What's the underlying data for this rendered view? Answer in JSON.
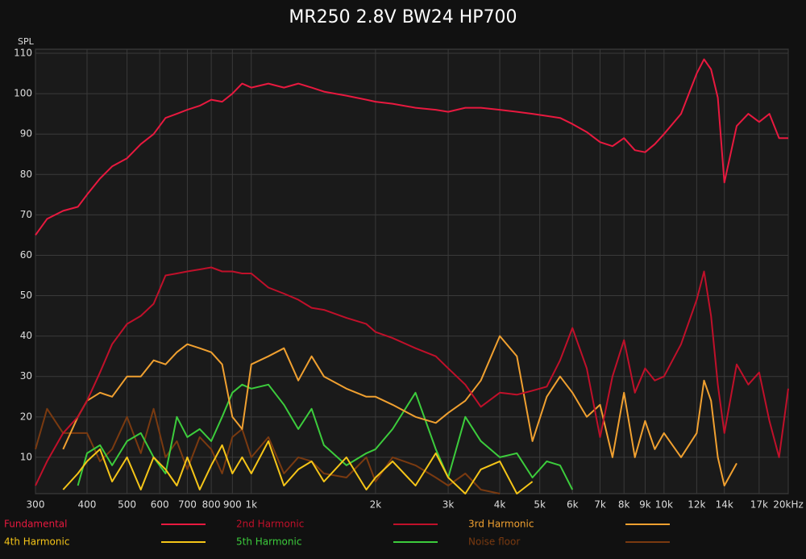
{
  "chart_data": {
    "type": "line",
    "title": "MR250 2.8V BW24 HP700",
    "y_label": "SPL",
    "log_x": true,
    "grid": true,
    "x": [
      300,
      320,
      350,
      380,
      400,
      430,
      460,
      500,
      540,
      580,
      620,
      660,
      700,
      750,
      800,
      850,
      900,
      950,
      1000,
      1100,
      1200,
      1300,
      1400,
      1500,
      1700,
      1900,
      2000,
      2200,
      2500,
      2800,
      3000,
      3300,
      3600,
      4000,
      4400,
      4800,
      5200,
      5600,
      6000,
      6500,
      7000,
      7500,
      8000,
      8500,
      9000,
      9500,
      10000,
      11000,
      12000,
      12500,
      13000,
      13500,
      14000,
      15000,
      16000,
      17000,
      18000,
      19000,
      20000
    ],
    "xlim": [
      300,
      20000
    ],
    "ylim": [
      1,
      111
    ],
    "xticks": [
      300,
      400,
      500,
      600,
      700,
      800,
      900,
      {
        "value": 1000,
        "label": "1k"
      },
      {
        "value": 2000,
        "label": "2k"
      },
      {
        "value": 3000,
        "label": "3k"
      },
      {
        "value": 4000,
        "label": "4k"
      },
      {
        "value": 5000,
        "label": "5k"
      },
      {
        "value": 6000,
        "label": "6k"
      },
      {
        "value": 7000,
        "label": "7k"
      },
      {
        "value": 8000,
        "label": "8k"
      },
      {
        "value": 9000,
        "label": "9k"
      },
      {
        "value": 10000,
        "label": "10k"
      },
      {
        "value": 12000,
        "label": "12k"
      },
      {
        "value": 14000,
        "label": "14k"
      },
      {
        "value": 17000,
        "label": "17k"
      },
      {
        "value": 20000,
        "label": "20kHz"
      }
    ],
    "yticks": [
      10,
      20,
      30,
      40,
      50,
      60,
      70,
      80,
      90,
      100,
      110
    ],
    "series": [
      {
        "name": "Fundamental",
        "color": "#e8193f",
        "values": [
          65,
          69,
          71,
          72,
          75,
          79,
          82,
          84,
          87.5,
          90,
          94,
          95,
          96,
          97,
          98.5,
          98,
          100,
          102.5,
          101.5,
          102.5,
          101.5,
          102.5,
          101.5,
          100.5,
          99.5,
          98.5,
          98,
          97.5,
          96.5,
          96,
          95.5,
          96.5,
          96.5,
          96,
          95.5,
          95,
          94.5,
          94,
          92.5,
          90.5,
          88,
          87,
          89,
          86,
          85.5,
          87.5,
          90,
          95,
          105,
          108.5,
          106,
          99,
          78,
          92,
          95,
          93,
          95,
          89,
          89
        ]
      },
      {
        "name": "2nd Harmonic",
        "color": "#c0102a",
        "values": [
          3,
          9,
          16,
          20,
          24,
          31,
          38,
          43,
          45,
          48,
          55,
          55.5,
          56,
          56.5,
          57,
          56,
          56,
          55.5,
          55.5,
          52,
          50.5,
          49,
          47,
          46.5,
          44.5,
          43,
          41,
          39.5,
          37,
          35,
          32,
          28,
          22.5,
          26,
          25.5,
          26.5,
          27.5,
          34,
          42,
          32,
          15,
          30,
          39,
          26,
          32,
          29,
          30,
          38,
          49,
          56,
          45,
          28,
          16,
          33,
          28,
          31,
          19,
          10,
          27
        ]
      },
      {
        "name": "3rd Harmonic",
        "color": "#f0a030",
        "values": [
          null,
          null,
          12,
          20,
          24,
          26,
          25,
          30,
          30,
          34,
          33,
          36,
          38,
          37,
          36,
          33,
          20,
          17,
          33,
          35,
          37,
          29,
          35,
          30,
          27,
          25,
          25,
          23,
          20,
          18.5,
          21,
          24,
          29,
          40,
          35,
          14,
          25,
          30,
          26,
          20,
          23,
          10,
          26,
          10,
          19,
          12,
          16,
          10,
          16,
          29,
          24,
          10,
          3,
          8.5,
          null,
          null,
          null,
          null,
          null
        ]
      },
      {
        "name": "4th Harmonic",
        "color": "#f5c518",
        "values": [
          null,
          null,
          2,
          6,
          9,
          12,
          4,
          10,
          2,
          10,
          7,
          3,
          10,
          2,
          8,
          13,
          6,
          10,
          6,
          14,
          3,
          7,
          9,
          4,
          10,
          2,
          5,
          9,
          3,
          11,
          5,
          1,
          7,
          9,
          1,
          4,
          null,
          null,
          null,
          null,
          null,
          null,
          null,
          null,
          null,
          null,
          null,
          null,
          null,
          null,
          null,
          null,
          null,
          null,
          null,
          null,
          null,
          null,
          null
        ]
      },
      {
        "name": "5th Harmonic",
        "color": "#3ccc3c",
        "values": [
          null,
          null,
          null,
          3,
          11,
          13,
          8,
          14,
          16,
          10,
          6,
          20,
          15,
          17,
          14,
          20,
          26,
          28,
          27,
          28,
          23,
          17,
          22,
          13,
          8,
          11,
          12,
          17,
          26,
          12,
          5,
          20,
          14,
          10,
          11,
          5,
          9,
          8,
          2,
          null,
          null,
          null,
          null,
          null,
          null,
          null,
          null,
          null,
          null,
          null,
          null,
          null,
          null,
          null,
          null,
          null,
          null,
          null,
          null
        ]
      },
      {
        "name": "Noise floor",
        "color": "#7a3a10",
        "values": [
          12,
          22,
          16,
          16,
          16,
          9,
          12,
          20,
          11,
          22,
          10,
          14,
          7,
          15,
          12,
          6,
          15,
          17,
          10,
          15,
          6,
          10,
          9,
          6,
          5,
          10,
          4,
          10,
          8,
          5,
          3,
          6,
          2,
          1,
          null,
          null,
          null,
          null,
          null,
          null,
          null,
          null,
          null,
          null,
          null,
          null,
          null,
          null,
          null,
          null,
          null,
          null,
          null,
          null,
          null,
          null,
          null,
          null,
          null
        ]
      }
    ]
  }
}
